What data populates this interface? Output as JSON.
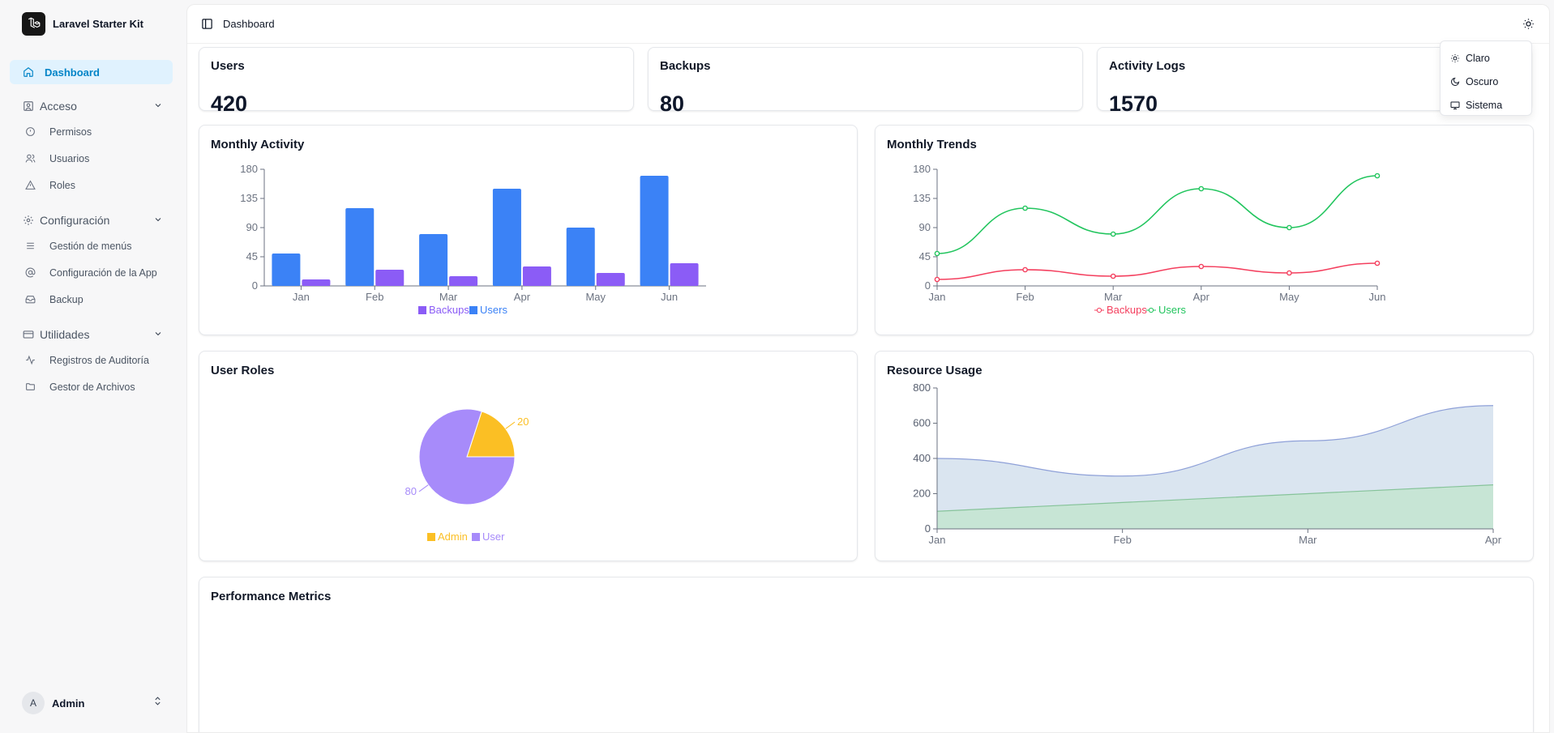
{
  "app": {
    "title": "Laravel Starter Kit"
  },
  "sidebar": {
    "dashboard_label": "Dashboard",
    "groups": [
      {
        "label": "Acceso",
        "items": [
          "Permisos",
          "Usuarios",
          "Roles"
        ]
      },
      {
        "label": "Configuración",
        "items": [
          "Gestión de menús",
          "Configuración de la App",
          "Backup"
        ]
      },
      {
        "label": "Utilidades",
        "items": [
          "Registros de Auditoría",
          "Gestor de Archivos"
        ]
      }
    ],
    "user": {
      "initial": "A",
      "name": "Admin"
    }
  },
  "header": {
    "breadcrumb": "Dashboard"
  },
  "theme_menu": {
    "items": [
      "Claro",
      "Oscuro",
      "Sistema"
    ]
  },
  "stats": [
    {
      "title": "Users",
      "value": "420"
    },
    {
      "title": "Backups",
      "value": "80"
    },
    {
      "title": "Activity Logs",
      "value": "1570"
    }
  ],
  "colors": {
    "users": "#3b82f6",
    "backups": "#8b5cf6",
    "trend_users": "#22c55e",
    "trend_backups": "#f43f5e",
    "admin": "#fbbf24",
    "user": "#a78bfa",
    "area1": "#d8e4ef",
    "area1_line": "#8ea0d8",
    "area2": "#c6e5d3",
    "area2_line": "#86c39a",
    "active": "#0284c7"
  },
  "chart_data": [
    {
      "type": "bar",
      "title": "Monthly Activity",
      "categories": [
        "Jan",
        "Feb",
        "Mar",
        "Apr",
        "May",
        "Jun"
      ],
      "series": [
        {
          "name": "Users",
          "values": [
            50,
            120,
            80,
            150,
            90,
            170
          ]
        },
        {
          "name": "Backups",
          "values": [
            10,
            25,
            15,
            30,
            20,
            35
          ]
        }
      ],
      "legend": [
        "Backups",
        "Users"
      ],
      "yticks": [
        0,
        45,
        90,
        135,
        180
      ],
      "ylim": [
        0,
        180
      ]
    },
    {
      "type": "line",
      "title": "Monthly Trends",
      "categories": [
        "Jan",
        "Feb",
        "Mar",
        "Apr",
        "May",
        "Jun"
      ],
      "series": [
        {
          "name": "Users",
          "values": [
            50,
            120,
            80,
            150,
            90,
            170
          ]
        },
        {
          "name": "Backups",
          "values": [
            10,
            25,
            15,
            30,
            20,
            35
          ]
        }
      ],
      "legend": [
        "Backups",
        "Users"
      ],
      "yticks": [
        0,
        45,
        90,
        135,
        180
      ],
      "ylim": [
        0,
        180
      ]
    },
    {
      "type": "pie",
      "title": "User Roles",
      "slices": [
        {
          "name": "Admin",
          "value": 20
        },
        {
          "name": "User",
          "value": 80
        }
      ]
    },
    {
      "type": "area",
      "title": "Resource Usage",
      "categories": [
        "Jan",
        "Feb",
        "Mar",
        "Apr"
      ],
      "series": [
        {
          "values": [
            400,
            300,
            500,
            700
          ]
        },
        {
          "values": [
            100,
            150,
            200,
            250
          ]
        }
      ],
      "yticks": [
        0,
        200,
        400,
        600,
        800
      ],
      "ylim": [
        0,
        800
      ]
    }
  ],
  "performance": {
    "title": "Performance Metrics"
  }
}
